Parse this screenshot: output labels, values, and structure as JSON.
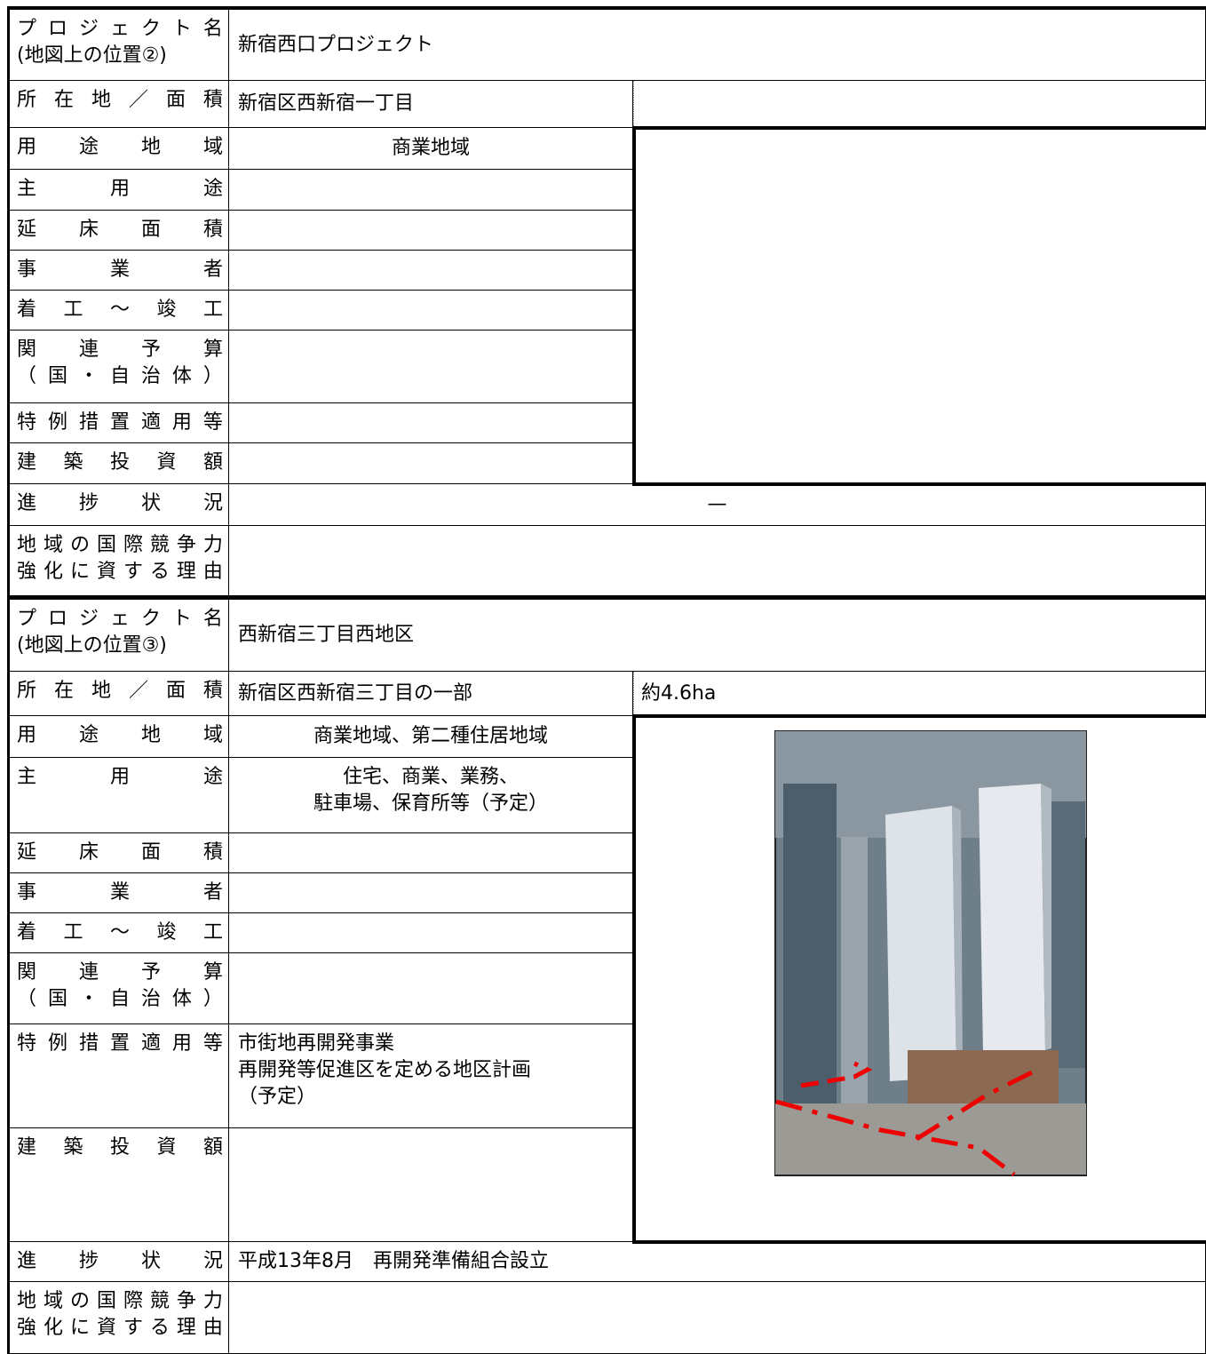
{
  "sections": [
    {
      "rows": [
        {
          "label": [
            "プロジェクト名",
            "(地図上の位置②)"
          ],
          "value": [
            "新宿西口プロジェクト"
          ]
        },
        {
          "label": [
            "所在地／面積"
          ],
          "value": [
            "新宿区西新宿一丁目"
          ]
        },
        {
          "label": [
            "用途地域"
          ],
          "value": [
            "商業地域"
          ]
        },
        {
          "label": [
            "主用途"
          ]
        },
        {
          "label": [
            "延床面積"
          ]
        },
        {
          "label": [
            "事業者"
          ]
        },
        {
          "label": [
            "着工～竣工"
          ]
        },
        {
          "label": [
            "関連予算",
            "（国・自治体）"
          ]
        },
        {
          "label": [
            "特例措置適用等"
          ]
        },
        {
          "label": [
            "建築投資額"
          ]
        },
        {
          "label": [
            "進捗状況"
          ],
          "value": [
            "—"
          ]
        },
        {
          "label": [
            "地域の国際競争力",
            "強化に資する理由"
          ]
        }
      ]
    },
    {
      "rows": [
        {
          "label": [
            "プロジェクト名",
            "(地図上の位置③)"
          ],
          "value": [
            "西新宿三丁目西地区"
          ]
        },
        {
          "label": [
            "所在地／面積"
          ],
          "value": [
            "新宿区西新宿三丁目の一部"
          ],
          "area": "約4.6ha"
        },
        {
          "label": [
            "用途地域"
          ],
          "value": [
            "商業地域、第二種住居地域"
          ]
        },
        {
          "label": [
            "主用途"
          ],
          "value": [
            "住宅、商業、業務、",
            "駐車場、保育所等（予定）"
          ]
        },
        {
          "label": [
            "延床面積"
          ]
        },
        {
          "label": [
            "事業者"
          ]
        },
        {
          "label": [
            "着工～竣工"
          ]
        },
        {
          "label": [
            "関連予算",
            "（国・自治体）"
          ]
        },
        {
          "label": [
            "特例措置適用等"
          ],
          "value": [
            "市街地再開発事業",
            "再開発等促進区を定める地区計画",
            "（予定）"
          ]
        },
        {
          "label": [
            "建築投資額"
          ]
        },
        {
          "label": [
            "進捗状況"
          ],
          "value": [
            "平成13年8月　再開発準備組合設立"
          ]
        },
        {
          "label": [
            "地域の国際競争力",
            "強化に資する理由"
          ]
        }
      ]
    }
  ]
}
